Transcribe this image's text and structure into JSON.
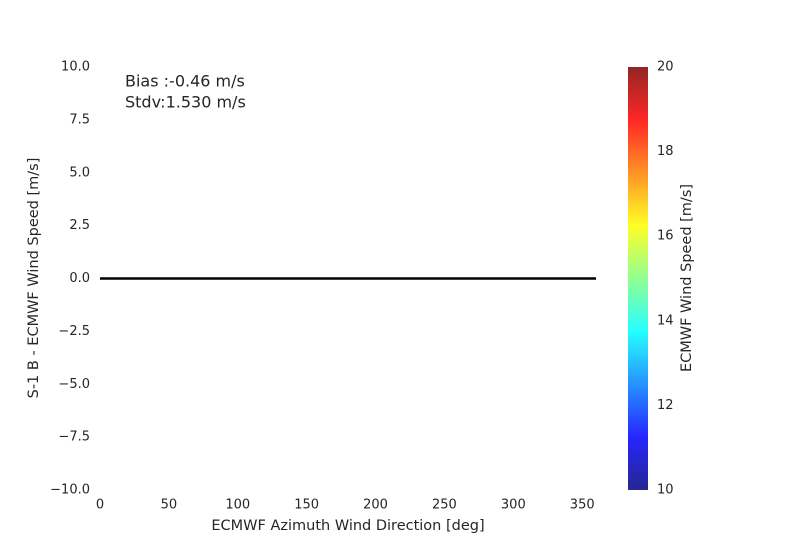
{
  "chart_data": {
    "type": "scatter",
    "xlabel": "ECMWF Azimuth Wind Direction [deg]",
    "ylabel": "S-1 B - ECMWF Wind Speed [m/s]",
    "annotations": [
      "Bias :-0.46 m/s",
      "Stdv:1.530 m/s"
    ],
    "xlim": [
      0,
      360
    ],
    "xticks": [
      0,
      50,
      100,
      150,
      200,
      250,
      300,
      350
    ],
    "ylim": [
      -10,
      10
    ],
    "yticks": [
      {
        "value": -10,
        "label": "−10.0"
      },
      {
        "value": -7.5,
        "label": "−7.5"
      },
      {
        "value": -5,
        "label": "−5.0"
      },
      {
        "value": -2.5,
        "label": "−2.5"
      },
      {
        "value": 0,
        "label": "0.0"
      },
      2.5,
      {
        "value": 5,
        "label": "5.0"
      },
      7.5,
      {
        "value": 10,
        "label": "10.0"
      }
    ],
    "hline": 0,
    "hline_color": "#000000",
    "background": "#eaeaf2",
    "colorbar": {
      "label": "ECMWF Wind Speed [m/s]",
      "colormap": "jet",
      "lim": [
        10,
        20
      ],
      "ticks": [
        10,
        12,
        14,
        16,
        18,
        20
      ]
    }
  }
}
